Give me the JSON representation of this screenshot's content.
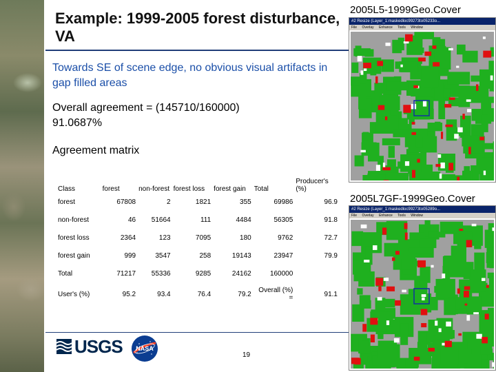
{
  "slide": {
    "title": "Example:  1999-2005 forest disturbance, VA",
    "subtitle": "Towards SE of scene edge, no obvious visual artifacts in gap filled areas",
    "agreement_line1": "Overall agreement = (145710/160000)",
    "agreement_line2": "91.0687%",
    "matrix_title": "Agreement matrix",
    "page_number": "19"
  },
  "images": {
    "top_label": "2005L5-1999Geo.Cover",
    "bottom_label": "2005L7GF-1999Geo.Cover",
    "top_window_title": "#2 Resize (Layer_1:maskedloc99273to05233o...",
    "bottom_window_title": "#2 Resize (Layer_1:maskedloc99273to05289o...",
    "menu": [
      "File",
      "Overlay",
      "Enhance",
      "Tools",
      "Window"
    ]
  },
  "matrix": {
    "headers": [
      "Class",
      "forest",
      "non-forest",
      "forest loss",
      "forest gain",
      "Total",
      "Producer's (%)"
    ],
    "rows": [
      {
        "label": "forest",
        "cells": [
          "67808",
          "2",
          "1821",
          "355",
          "69986",
          "96.9"
        ]
      },
      {
        "label": "non-forest",
        "cells": [
          "46",
          "51664",
          "111",
          "4484",
          "56305",
          "91.8"
        ]
      },
      {
        "label": "forest loss",
        "cells": [
          "2364",
          "123",
          "7095",
          "180",
          "9762",
          "72.7"
        ]
      },
      {
        "label": "forest gain",
        "cells": [
          "999",
          "3547",
          "258",
          "19143",
          "23947",
          "79.9"
        ]
      },
      {
        "label": "Total",
        "cells": [
          "71217",
          "55336",
          "9285",
          "24162",
          "160000",
          ""
        ]
      }
    ],
    "users_row": {
      "label": "User's (%)",
      "cells": [
        "95.2",
        "93.4",
        "76.4",
        "79.2"
      ],
      "overall_label": "Overall (%) =",
      "overall_value": "91.1"
    }
  },
  "logos": {
    "usgs": "USGS",
    "nasa": "NASA"
  },
  "colors": {
    "title_rule": "#1f3d78",
    "subtitle": "#1a4ea8",
    "forest": "#1fb01f",
    "nonforest": "#a0a0a0",
    "loss": "#e01010",
    "gain": "#ffffff"
  }
}
